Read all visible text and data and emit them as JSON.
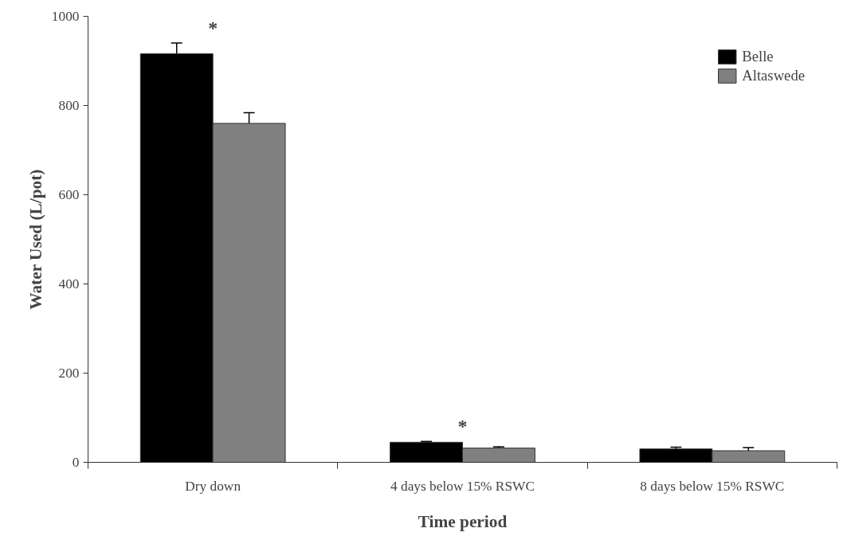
{
  "chart_data": {
    "type": "bar",
    "xlabel": "Time period",
    "ylabel": "Water Used (L/pot)",
    "categories": [
      "Dry down",
      "4 days below 15% RSWC",
      "8 days below 15% RSWC"
    ],
    "series": [
      {
        "name": "Belle",
        "color": "#000000",
        "values": [
          916,
          45,
          30
        ],
        "errors": [
          24,
          2,
          4
        ]
      },
      {
        "name": "Altaswede",
        "color": "#808080",
        "values": [
          760,
          32,
          26
        ],
        "errors": [
          24,
          3,
          7
        ]
      }
    ],
    "ylim": [
      0,
      1000
    ],
    "yticks": [
      0,
      200,
      400,
      600,
      800,
      1000
    ],
    "grid": false,
    "legend": "top right",
    "annotations": [
      "*",
      "*"
    ]
  }
}
